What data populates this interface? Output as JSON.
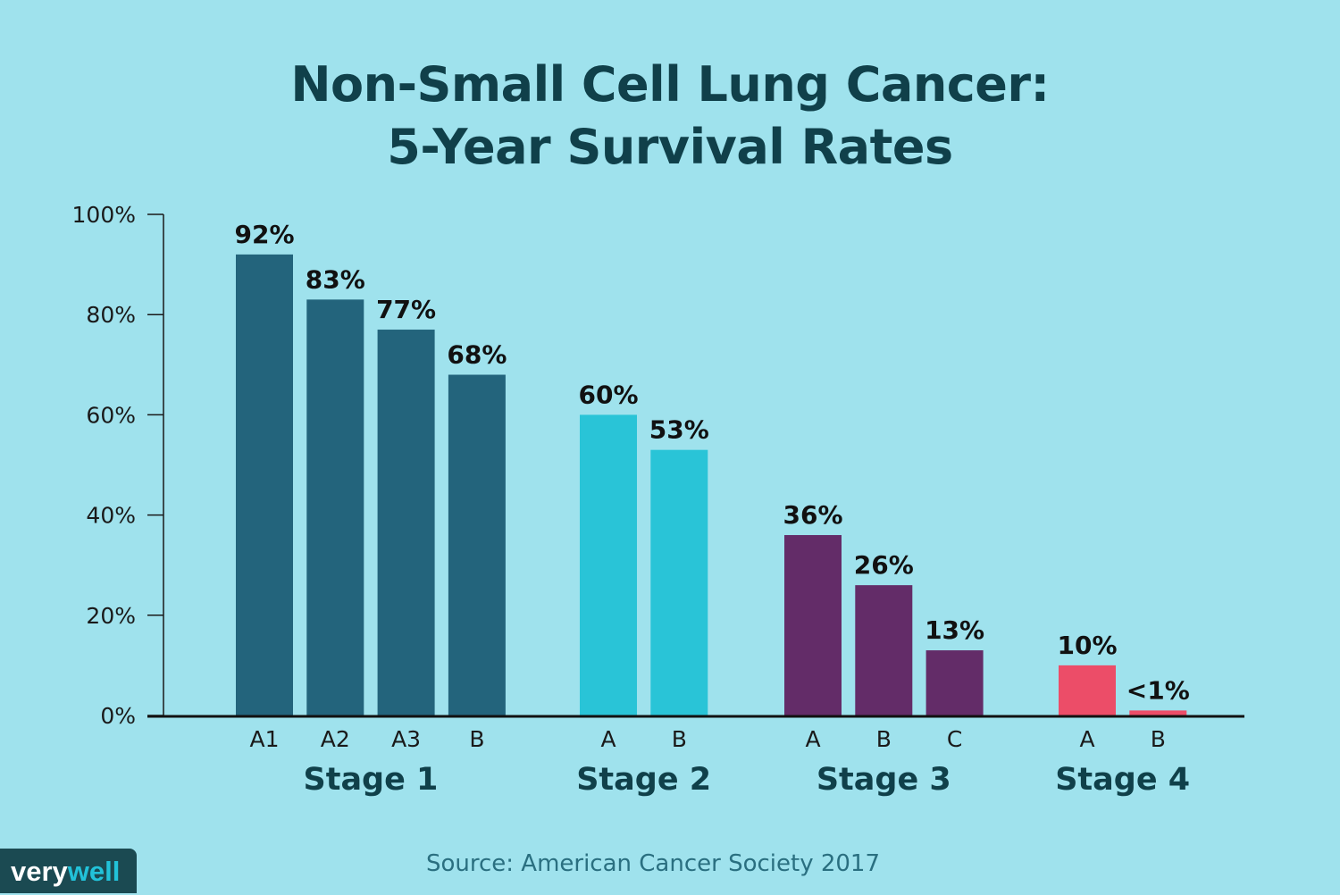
{
  "chart_data": {
    "type": "bar",
    "title": [
      "Non-Small Cell Lung Cancer:",
      "5-Year Survival Rates"
    ],
    "ylim": [
      0,
      100
    ],
    "yticks": [
      "0%",
      "20%",
      "40%",
      "60%",
      "80%",
      "100%"
    ],
    "grid": false,
    "groups": [
      {
        "name": "Stage 1",
        "color": "#23647c",
        "bars": [
          {
            "category": "A1",
            "value": 92,
            "label": "92%"
          },
          {
            "category": "A2",
            "value": 83,
            "label": "83%"
          },
          {
            "category": "A3",
            "value": 77,
            "label": "77%"
          },
          {
            "category": "B",
            "value": 68,
            "label": "68%"
          }
        ]
      },
      {
        "name": "Stage 2",
        "color": "#29c4d7",
        "bars": [
          {
            "category": "A",
            "value": 60,
            "label": "60%"
          },
          {
            "category": "B",
            "value": 53,
            "label": "53%"
          }
        ]
      },
      {
        "name": "Stage 3",
        "color": "#632c68",
        "bars": [
          {
            "category": "A",
            "value": 36,
            "label": "36%"
          },
          {
            "category": "B",
            "value": 26,
            "label": "26%"
          },
          {
            "category": "C",
            "value": 13,
            "label": "13%"
          }
        ]
      },
      {
        "name": "Stage 4",
        "color": "#ec4d68",
        "bars": [
          {
            "category": "A",
            "value": 10,
            "label": "10%"
          },
          {
            "category": "B",
            "value": 1,
            "label": "<1%"
          }
        ]
      }
    ]
  },
  "source": "Source: American Cancer Society 2017",
  "logo": {
    "part1": "very",
    "part2": "well"
  }
}
